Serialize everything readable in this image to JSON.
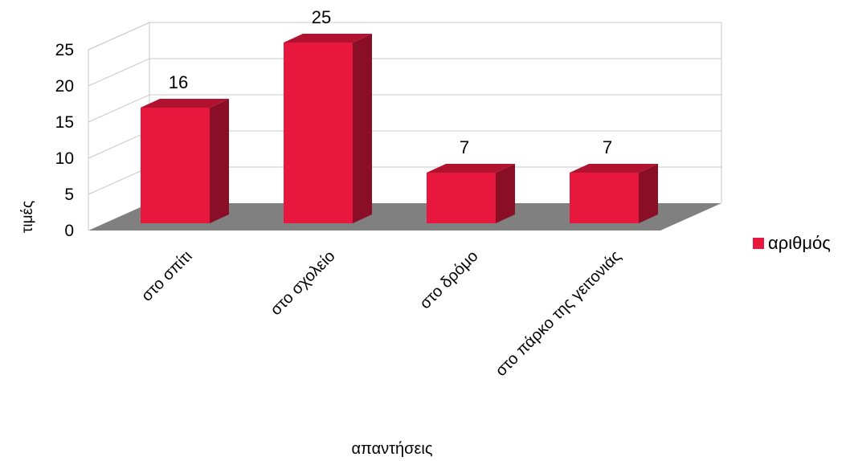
{
  "chart_data": {
    "type": "bar",
    "title": "",
    "xlabel": "απαντήσεις",
    "ylabel": "τιμές",
    "categories": [
      "στο σπίτι",
      "στο σχολείο",
      "στο δρόμο",
      "στο πάρκο της γειτονιάς"
    ],
    "series": [
      {
        "name": "αριθμός",
        "values": [
          16,
          25,
          7,
          7
        ]
      }
    ],
    "ylim": [
      0,
      25
    ],
    "yticks": [
      "0",
      "5",
      "10",
      "15",
      "20",
      "25"
    ],
    "data_labels": [
      "16",
      "25",
      "7",
      "7"
    ],
    "grid": true,
    "legend": "right",
    "three_d": true
  },
  "colors": {
    "bar_front": "#e8173d",
    "bar_side": "#8a0f26",
    "bar_top": "#b01230",
    "floor": "#808080",
    "grid": "#c8c8c8"
  }
}
